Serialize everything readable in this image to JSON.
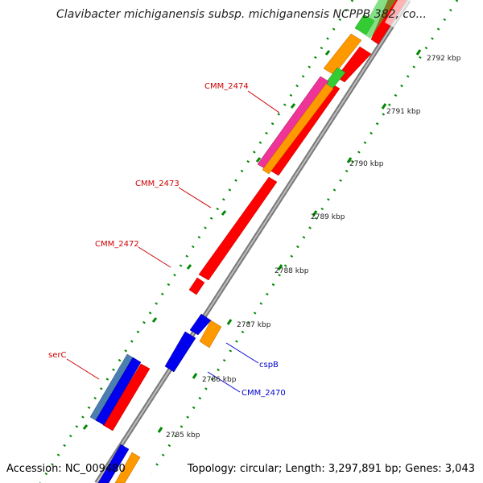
{
  "title": "Clavibacter michiganensis subsp. michiganensis NCPPB 382, co...",
  "accession": "Accession: NC_009480",
  "topology": "Topology: circular; Length: 3,297,891 bp; Genes: 3,043",
  "kbp_labels": [
    "2792 kbp",
    "2791 kbp",
    "2790 kbp",
    "2789 kbp",
    "2788 kbp",
    "2787 kbp",
    "2786 kbp",
    "2785 kbp"
  ],
  "gene_labels": {
    "cmm_2474": "CMM_2474",
    "cmm_2473": "CMM_2473",
    "cmm_2472": "CMM_2472",
    "serc": "serC",
    "cspb": "cspB",
    "cmm_2470": "CMM_2470"
  },
  "colors": {
    "forward_label": "#cc0000",
    "reverse_label": "#0000cc",
    "cds_red": "#ff0000",
    "cds_blue": "#0000ee",
    "cds_orange": "#ff9900",
    "cds_green": "#33cc33",
    "cds_magenta": "#ee3399",
    "cds_steel": "#4a7fb0",
    "backbone": "#888888",
    "tick": "#008800"
  }
}
